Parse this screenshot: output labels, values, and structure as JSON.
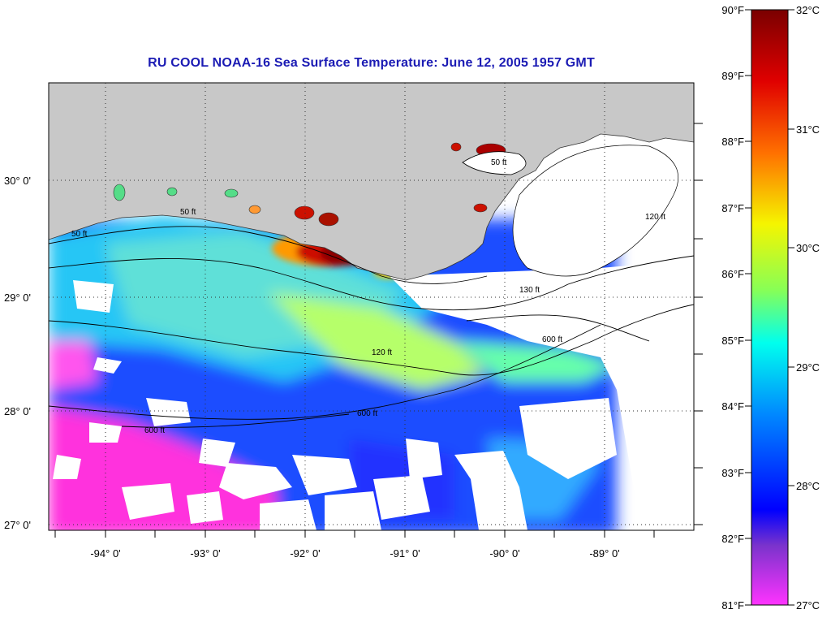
{
  "title": "RU COOL  NOAA-16  Sea Surface Temperature:  June 12, 2005 1957 GMT",
  "axes": {
    "lon_ticks": [
      "-94° 0'",
      "-93° 0'",
      "-92° 0'",
      "-91° 0'",
      "-90° 0'",
      "-89° 0'"
    ],
    "lat_ticks": [
      "30° 0'",
      "29° 0'",
      "28° 0'",
      "27° 0'"
    ]
  },
  "contour_labels": [
    "50 ft",
    "50 ft",
    "50 ft",
    "120 ft",
    "120 ft",
    "600 ft",
    "600 ft",
    "600 ft",
    "130 ft"
  ],
  "colorbar": {
    "fahrenheit_ticks": [
      "90°F",
      "89°F",
      "88°F",
      "87°F",
      "86°F",
      "85°F",
      "84°F",
      "83°F",
      "82°F",
      "81°F"
    ],
    "celsius_ticks": [
      "32°C",
      "31°C",
      "30°C",
      "29°C",
      "28°C",
      "27°C"
    ],
    "colors": [
      "#8b0000",
      "#ff1a00",
      "#ff9900",
      "#f5f500",
      "#88ff44",
      "#00ffff",
      "#0066ff",
      "#0000ff",
      "#8833cc",
      "#ff33ff"
    ]
  },
  "colors": {
    "land": "#c8c8c8",
    "cloud": "#ffffff",
    "title": "#1b1bb4"
  }
}
